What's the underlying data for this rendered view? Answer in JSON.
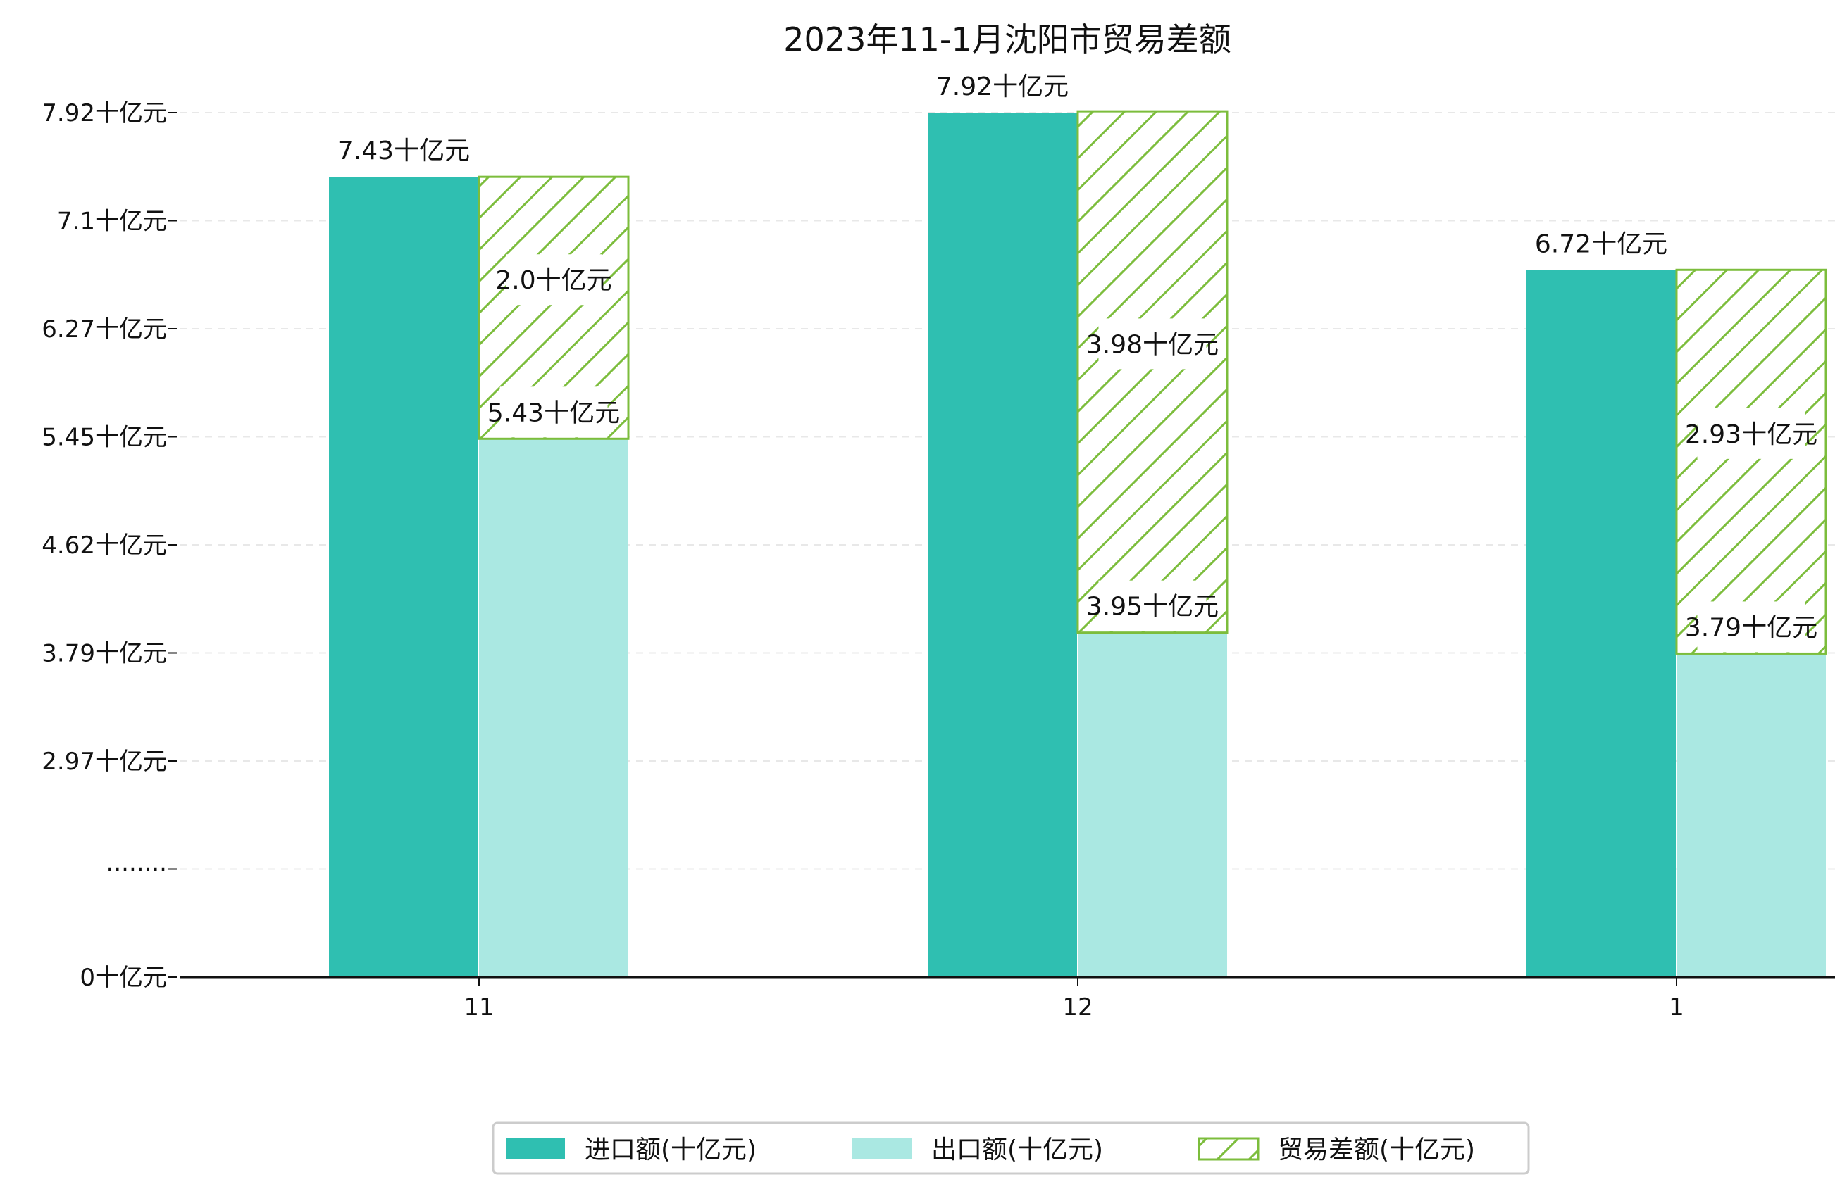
{
  "chart_data": {
    "type": "bar",
    "title": "2023年11-1月沈阳市贸易差额",
    "categories": [
      "11",
      "12",
      "1"
    ],
    "series": [
      {
        "name": "进口额(十亿元)",
        "values": [
          7.43,
          7.92,
          6.72
        ],
        "labels": [
          "7.43十亿元",
          "7.92十亿元",
          "6.72十亿元"
        ],
        "color": "#2fbfb1"
      },
      {
        "name": "出口额(十亿元)",
        "values": [
          5.43,
          3.95,
          3.79
        ],
        "labels": [
          "5.43十亿元",
          "3.95十亿元",
          "3.79十亿元"
        ],
        "color": "#aae8e2"
      },
      {
        "name": "贸易差额(十亿元)",
        "values": [
          2.0,
          3.98,
          2.93
        ],
        "labels": [
          "2.0十亿元",
          "3.98十亿元",
          "2.93十亿元"
        ],
        "color": "#7cbd3c",
        "style": "hatched",
        "stacked_on": "出口额(十亿元)"
      }
    ],
    "yticks": [
      {
        "value": 0,
        "label": "0十亿元"
      },
      {
        "value": 1.0,
        "label": "········"
      },
      {
        "value": 2.0,
        "label": "2.97十亿元"
      },
      {
        "value": 3.0,
        "label": "3.79十亿元"
      },
      {
        "value": 4.0,
        "label": "4.62十亿元"
      },
      {
        "value": 5.0,
        "label": "5.45十亿元"
      },
      {
        "value": 6.0,
        "label": "6.27十亿元"
      },
      {
        "value": 7.0,
        "label": "7.1十亿元"
      },
      {
        "value": 8.0,
        "label": "7.92十亿元"
      }
    ],
    "axis_note": "broken y-axis: real values mapped linearly between 2.97 and 7.92 (one step = 0.825 十亿元)",
    "ylim": [
      0,
      7.92
    ],
    "grid": true,
    "legend_position": "bottom-center"
  }
}
